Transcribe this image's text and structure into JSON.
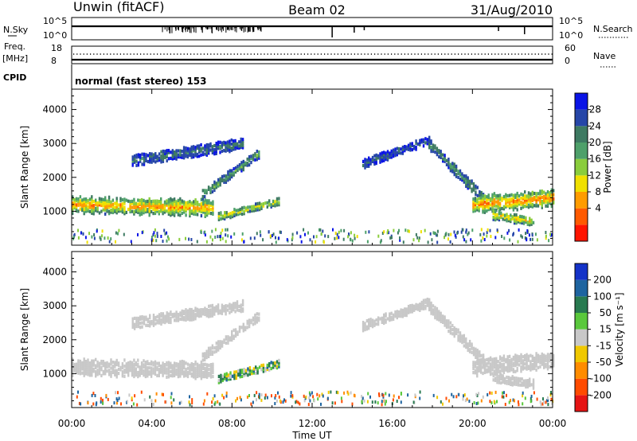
{
  "header": {
    "station": "Unwin (fitACF)",
    "beam": "Beam 02",
    "date": "31/Aug/2010"
  },
  "strip_panels": {
    "nsky_label": "N.Sky",
    "nsky_ticks": [
      "10^5",
      "10^0"
    ],
    "nsearch_label": "N.Search",
    "nsearch_ticks": [
      "10^5",
      "10^0"
    ],
    "freq_label_line1": "Freq.",
    "freq_label_line2": "[MHz]",
    "freq_ticks": [
      "18",
      "8"
    ],
    "nave_label": "Nave",
    "nave_ticks": [
      "60",
      "0"
    ],
    "cpid_label": "CPID",
    "cpid_text": "normal (fast stereo) 153"
  },
  "power_scale": {
    "label": "Power [dB]",
    "ticks": [
      "28",
      "24",
      "20",
      "16",
      "12",
      "8",
      "4"
    ],
    "colors": [
      "#0a14e6",
      "#2646a8",
      "#3e7a62",
      "#4ea06a",
      "#8acd3c",
      "#f0e000",
      "#ff9c00",
      "#ff5a00",
      "#ff1400"
    ]
  },
  "velocity_scale": {
    "label": "Velocity [m s⁻¹]",
    "ticks": [
      "200",
      "100",
      "50",
      "15",
      "-15",
      "-50",
      "-100",
      "-200"
    ],
    "colors": [
      "#1432c8",
      "#1e64a0",
      "#287a50",
      "#5ac83c",
      "#c8c8c8",
      "#f0c800",
      "#ff8c00",
      "#ff4b00",
      "#e61414"
    ]
  },
  "x_axis": {
    "label": "Time UT",
    "ticks": [
      "00:00",
      "04:00",
      "08:00",
      "12:00",
      "16:00",
      "20:00",
      "00:00"
    ]
  },
  "chart_data": [
    {
      "type": "heatmap",
      "title": "",
      "xlabel": "",
      "ylabel": "Slant Range [km]",
      "colorbar_label": "Power [dB]",
      "x_range": [
        "00:00",
        "24:00"
      ],
      "y_range": [
        0,
        4600
      ],
      "y_ticks": [
        1000,
        2000,
        3000,
        4000
      ],
      "z_range": [
        0,
        32
      ],
      "regions": [
        {
          "name": "main band 00-07 UT",
          "t_start": 0.0,
          "t_end": 7.0,
          "range_start_km": 1200,
          "range_end_km": 1100,
          "half_width_km": 220,
          "power_db": 22
        },
        {
          "name": "rising arc 07-09 UT",
          "t_start": 6.5,
          "t_end": 9.3,
          "range_start_km": 1500,
          "range_end_km": 2700,
          "half_width_km": 120,
          "power_db": 12
        },
        {
          "name": "arc near 09-10 UT",
          "t_start": 7.3,
          "t_end": 10.3,
          "range_start_km": 850,
          "range_end_km": 1300,
          "half_width_km": 100,
          "power_db": 18
        },
        {
          "name": "upper patch 03-07 UT",
          "t_start": 3.0,
          "t_end": 8.5,
          "range_start_km": 2500,
          "range_end_km": 3000,
          "half_width_km": 150,
          "power_db": 8
        },
        {
          "name": "pre-dawn rise 15-18 UT",
          "t_start": 14.5,
          "t_end": 17.8,
          "range_start_km": 2400,
          "range_end_km": 3100,
          "half_width_km": 120,
          "power_db": 6
        },
        {
          "name": "descending band 18-20.5 UT",
          "t_start": 17.8,
          "t_end": 20.5,
          "range_start_km": 3000,
          "range_end_km": 1400,
          "half_width_km": 150,
          "power_db": 10
        },
        {
          "name": "late band 20-24 UT",
          "t_start": 20.0,
          "t_end": 24.0,
          "range_start_km": 1200,
          "range_end_km": 1400,
          "half_width_km": 230,
          "power_db": 23
        },
        {
          "name": "near-range echo 21-23 UT",
          "t_start": 21.0,
          "t_end": 23.0,
          "range_start_km": 900,
          "range_end_km": 700,
          "half_width_km": 120,
          "power_db": 20
        }
      ]
    },
    {
      "type": "heatmap",
      "title": "",
      "xlabel": "Time UT",
      "ylabel": "Slant Range [km]",
      "colorbar_label": "Velocity [m s⁻¹]",
      "x_range": [
        "00:00",
        "24:00"
      ],
      "y_range": [
        0,
        4600
      ],
      "y_ticks": [
        1000,
        2000,
        3000,
        4000
      ],
      "z_range": [
        -250,
        250
      ],
      "regions": [
        {
          "name": "ground scatter 00-07 UT",
          "t_start": 0.0,
          "t_end": 7.0,
          "range_start_km": 1200,
          "range_end_km": 1100,
          "half_width_km": 220,
          "velocity_ms": 0
        },
        {
          "name": "ground scatter arc 07-09 UT",
          "t_start": 6.5,
          "t_end": 9.3,
          "range_start_km": 1500,
          "range_end_km": 2700,
          "half_width_km": 120,
          "velocity_ms": 0
        },
        {
          "name": "ionospheric echo 07-10 UT",
          "t_start": 7.3,
          "t_end": 10.3,
          "range_start_km": 850,
          "range_end_km": 1300,
          "half_width_km": 100,
          "velocity_ms": 40
        },
        {
          "name": "upper patch 03-07 UT",
          "t_start": 3.0,
          "t_end": 8.5,
          "range_start_km": 2500,
          "range_end_km": 3000,
          "half_width_km": 150,
          "velocity_ms": 0
        },
        {
          "name": "pre-dawn rise 15-18 UT",
          "t_start": 14.5,
          "t_end": 17.8,
          "range_start_km": 2400,
          "range_end_km": 3100,
          "half_width_km": 120,
          "velocity_ms": 0
        },
        {
          "name": "descending band 18-20.5 UT",
          "t_start": 17.8,
          "t_end": 20.5,
          "range_start_km": 3000,
          "range_end_km": 1400,
          "half_width_km": 150,
          "velocity_ms": 0
        },
        {
          "name": "late band 20-24 UT",
          "t_start": 20.0,
          "t_end": 24.0,
          "range_start_km": 1200,
          "range_end_km": 1400,
          "half_width_km": 230,
          "velocity_ms": 0
        },
        {
          "name": "near-range echo 21-23 UT",
          "t_start": 21.0,
          "t_end": 23.0,
          "range_start_km": 900,
          "range_end_km": 700,
          "half_width_km": 120,
          "velocity_ms": 0
        }
      ]
    }
  ]
}
